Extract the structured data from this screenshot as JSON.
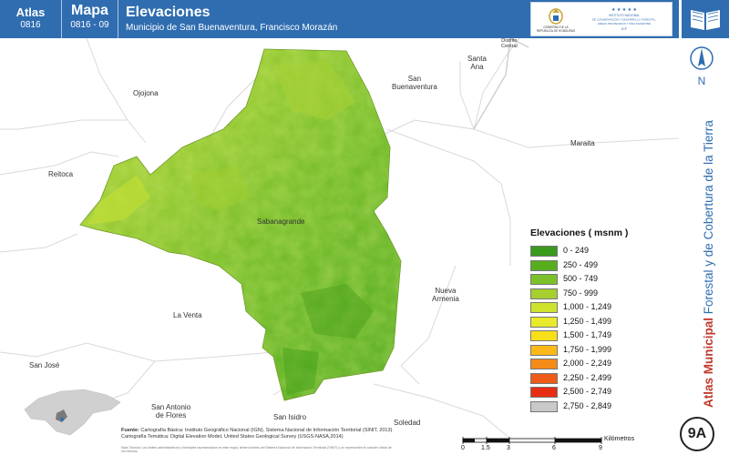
{
  "header": {
    "atlas_label": "Atlas",
    "atlas_code": "0816",
    "mapa_label": "Mapa",
    "mapa_code": "0816 - 09",
    "title": "Elevaciones",
    "subtitle": "Municipio de San Buenaventura, Francisco Morazán",
    "logos": {
      "government_text": "GOBIERNO DE LA REPÚBLICA DE HONDURAS",
      "institute_text": "INSTITUTO NACIONAL DE CONSERVACIÓN Y DESARROLLO FORESTAL, ÁREAS PROTEGIDAS Y VIDA SILVESTRE",
      "institute_abbr": "ICF"
    },
    "book_icon": "open-book-icon"
  },
  "sidebar": {
    "north_letter": "N",
    "title_bold": "Atlas Municipal",
    "title_rest": "Forestal y de Cobertura de la Tierra",
    "map_code": "9A"
  },
  "map": {
    "places": [
      {
        "id": "ojojona",
        "label": "Ojojona"
      },
      {
        "id": "reitoca",
        "label": "Reitoca"
      },
      {
        "id": "sabanagrande",
        "label": "Sabanagrande"
      },
      {
        "id": "san-buenaventura",
        "label": "San\nBuenaventura"
      },
      {
        "id": "santa-ana",
        "label": "Santa\nAna"
      },
      {
        "id": "distrito-central",
        "label": "Distrito\nCentral"
      },
      {
        "id": "maraita",
        "label": "Maraita"
      },
      {
        "id": "nueva-armenia",
        "label": "Nueva\nArmenia"
      },
      {
        "id": "la-venta",
        "label": "La Venta"
      },
      {
        "id": "san-jose",
        "label": "San José"
      },
      {
        "id": "san-antonio-de-flores",
        "label": "San Antonio\nde Flores"
      },
      {
        "id": "san-isidro",
        "label": "San Isidro"
      },
      {
        "id": "soledad",
        "label": "Soledad"
      }
    ]
  },
  "legend": {
    "title": "Elevaciones ( msnm )",
    "items": [
      {
        "label": "0 - 249",
        "color": "#3a9a1c"
      },
      {
        "label": "250 - 499",
        "color": "#58ad1f"
      },
      {
        "label": "500 - 749",
        "color": "#7cc02a"
      },
      {
        "label": "750 - 999",
        "color": "#a6cf30"
      },
      {
        "label": "1,000 - 1,249",
        "color": "#cde32e"
      },
      {
        "label": "1,250 - 1,499",
        "color": "#e9ea2a"
      },
      {
        "label": "1,500 - 1,749",
        "color": "#f7df1a"
      },
      {
        "label": "1,750 - 1,999",
        "color": "#fbb919"
      },
      {
        "label": "2,000 - 2,249",
        "color": "#f48a18"
      },
      {
        "label": "2,250 - 2,499",
        "color": "#ee5b16"
      },
      {
        "label": "2,500 - 2,749",
        "color": "#e52e14"
      },
      {
        "label": "2,750 - 2,849",
        "color": "#c9c9c9"
      }
    ]
  },
  "sources": {
    "label": "Fuente:",
    "line1": "Cartografía Básica: Instituto Geográfico Nacional (IGN), Sistema Nacional de Información Territorial (SINIT, 2013)",
    "line2": "Cartografía Temática: Digital Elevation Model, United States Geological Survey (USGS-NASA,2014)",
    "notes": "Nota Técnica: Los límites administrativos y forestales representados en este mapa, tienen fuentes del Sistema Nacional de Información Territorial (SINIT) y no representan el carácter oficial de los mismos."
  },
  "scale": {
    "ticks": [
      "0",
      "1.5",
      "3",
      "6",
      "9"
    ],
    "unit": "Kilómetros"
  },
  "colors": {
    "header_bg": "#2f6db0",
    "sidebar_text": "#2f6db0",
    "sidebar_bold": "#c0392b"
  }
}
